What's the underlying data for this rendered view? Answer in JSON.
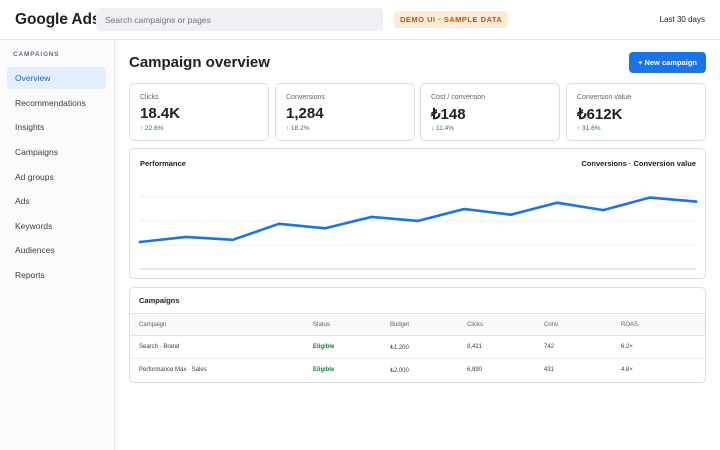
{
  "app": {
    "title": "Google Ads",
    "search_placeholder": "Search campaigns or pages",
    "demo_badge": "DEMO UI · SAMPLE DATA",
    "date_range": "Last 30 days"
  },
  "sidebar": {
    "heading": "CAMPAIGNS",
    "items": [
      {
        "label": "Overview",
        "active": true
      },
      {
        "label": "Recommendations"
      },
      {
        "label": "Insights"
      },
      {
        "label": "Campaigns"
      },
      {
        "label": "Ad groups"
      },
      {
        "label": "Ads"
      },
      {
        "label": "Keywords"
      },
      {
        "label": "Audiences"
      },
      {
        "label": "Reports"
      }
    ]
  },
  "main": {
    "title": "Campaign overview",
    "new_button": "+ New campaign"
  },
  "kpis": [
    {
      "label": "Clicks",
      "value": "18.4K",
      "delta": "↑ 22.6%"
    },
    {
      "label": "Conversions",
      "value": "1,284",
      "delta": "↑ 18.2%"
    },
    {
      "label": "Cost / conversion",
      "value": "₺148",
      "delta": "↓ 11.4%"
    },
    {
      "label": "Conversion value",
      "value": "₺612K",
      "delta": "↑ 31.6%"
    }
  ],
  "performance": {
    "title": "Performance",
    "legend": "Conversions · Conversion value",
    "line_color": "#1a73e8"
  },
  "chart_data": {
    "type": "line",
    "title": "Performance",
    "legend": "Conversions · Conversion value",
    "grid": true,
    "ylim": [
      0,
      100
    ],
    "x": [
      1,
      2,
      3,
      4,
      5,
      6,
      7,
      8,
      9,
      10,
      11,
      12,
      13
    ],
    "values": [
      21,
      30,
      25,
      53,
      45,
      65,
      58,
      79,
      69,
      90,
      77,
      99,
      92
    ]
  },
  "campaigns": {
    "title": "Campaigns",
    "columns": [
      "Campaign",
      "Status",
      "Budget",
      "Clicks",
      "Conv.",
      "ROAS"
    ],
    "rows": [
      [
        "Search · Brand",
        "Eligible",
        "₺1,200",
        "8,421",
        "742",
        "6.2×"
      ],
      [
        "Performance Max · Sales",
        "Eligible",
        "₺2,000",
        "6,890",
        "431",
        "4.8×"
      ]
    ]
  },
  "colors": {
    "accent": "#1a73e8",
    "positive": "#188038",
    "badge_text": "#c7520f",
    "badge_bg": "#fdebd8"
  }
}
